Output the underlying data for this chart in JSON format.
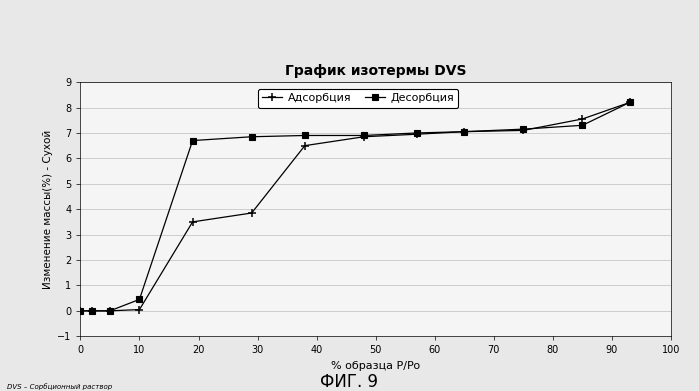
{
  "title": "График изотермы DVS",
  "xlabel": "% образца P/Po",
  "ylabel": "Изменение массы(%) - Сухой",
  "footnote": "DVS – Сорбционный раствор",
  "fig_label": "ФИГ. 9",
  "xlim": [
    0,
    100
  ],
  "ylim": [
    -1,
    9
  ],
  "yticks": [
    -1,
    0,
    1,
    2,
    3,
    4,
    5,
    6,
    7,
    8,
    9
  ],
  "xticks": [
    0,
    10,
    20,
    30,
    40,
    50,
    60,
    70,
    80,
    90,
    100
  ],
  "adsorption_x": [
    0,
    2,
    5,
    10,
    19,
    29,
    38,
    48,
    57,
    65,
    75,
    85,
    93
  ],
  "adsorption_y": [
    0,
    0,
    0,
    0.05,
    3.5,
    3.85,
    6.5,
    6.85,
    6.95,
    7.05,
    7.1,
    7.55,
    8.2
  ],
  "desorption_x": [
    0,
    2,
    5,
    10,
    19,
    29,
    38,
    48,
    57,
    65,
    75,
    85,
    93
  ],
  "desorption_y": [
    0,
    0,
    0,
    0.45,
    6.7,
    6.85,
    6.9,
    6.9,
    7.0,
    7.05,
    7.15,
    7.3,
    8.2
  ],
  "line_color": "#000000",
  "bg_color": "#f0f0f0",
  "legend_adsorption": "Адсорбция",
  "legend_desorption": "Десорбция"
}
